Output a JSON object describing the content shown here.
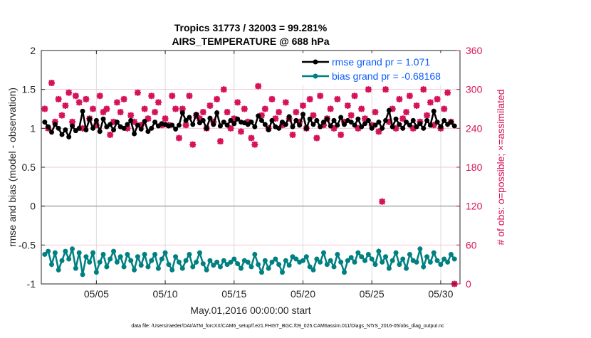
{
  "chart_data": {
    "type": "line",
    "title": [
      "Tropics 31773 / 32003 = 99.281%",
      "AIRS_TEMPERATURE @ 688 hPa"
    ],
    "xlabel": "May.01,2016 00:00:00 start",
    "ylabel": "rmse and bias (model - observation)",
    "ylabel_right": "# of obs: o=possible; ×=assimilated",
    "footer": "data file: /Users/raeder/DAI/ATM_forcXX/CAM6_setup/f.e21.FHIST_BGC.f09_025.CAM6assim.011/Diags_NTrS_2016-05/obs_diag_output.nc",
    "x_units": "days since May.01,2016 00:00:00",
    "xlim": [
      0,
      30.4
    ],
    "x_ticks": [
      4,
      9,
      14,
      19,
      24,
      29
    ],
    "x_tick_labels": [
      "05/05",
      "05/10",
      "05/15",
      "05/20",
      "05/25",
      "05/30"
    ],
    "ylim": [
      -1,
      2
    ],
    "y_ticks": [
      -1,
      -0.5,
      0,
      0.5,
      1,
      1.5,
      2
    ],
    "y_tick_labels": [
      "-1",
      "-0.5",
      "0",
      "0.5",
      "1",
      "1.5",
      "2"
    ],
    "ylim_right": [
      0,
      360
    ],
    "y_ticks_right": [
      0,
      60,
      120,
      180,
      240,
      300,
      360
    ],
    "y_tick_labels_right": [
      "0",
      "60",
      "120",
      "180",
      "240",
      "300",
      "360"
    ],
    "legend_placement": "top-right",
    "x_start": 0.25,
    "x_step": 0.25,
    "series": [
      {
        "name": "rmse grand pr = 1.071",
        "color": "#000000",
        "values": [
          1.08,
          1.02,
          0.95,
          1.05,
          1.0,
          0.92,
          0.98,
          0.89,
          1.03,
          0.97,
          1.0,
          1.22,
          0.98,
          1.12,
          1.0,
          1.1,
          0.96,
          1.12,
          1.02,
          1.05,
          0.98,
          1.08,
          1.02,
          1.0,
          1.05,
          1.1,
          0.93,
          1.04,
          0.99,
          1.09,
          0.96,
          1.0,
          1.08,
          1.03,
          1.06,
          1.05,
          1.03,
          1.04,
          0.99,
          1.04,
          1.2,
          1.1,
          1.14,
          1.05,
          1.18,
          1.07,
          1.1,
          1.0,
          1.13,
          1.05,
          1.2,
          1.03,
          1.08,
          1.04,
          1.1,
          1.06,
          1.12,
          1.08,
          1.07,
          1.05,
          1.08,
          1.02,
          1.16,
          1.1,
          1.05,
          0.98,
          1.1,
          1.02,
          1.0,
          1.08,
          1.05,
          1.15,
          1.02,
          1.1,
          1.04,
          1.18,
          1.0,
          1.12,
          1.05,
          1.1,
          1.02,
          1.08,
          1.12,
          1.03,
          1.1,
          1.04,
          1.14,
          1.05,
          1.1,
          1.08,
          1.04,
          1.12,
          1.02,
          1.06,
          1.1,
          1.0,
          1.04,
          1.08,
          1.0,
          1.1,
          1.23,
          1.02,
          1.12,
          1.05,
          1.0,
          1.08,
          1.04,
          1.1,
          1.02,
          1.06,
          1.0,
          1.1,
          1.04,
          1.22,
          1.08,
          1.02,
          1.1,
          1.05,
          1.08,
          1.03
        ]
      },
      {
        "name": "bias grand pr = -0.68168",
        "color": "#008080",
        "values": [
          -0.62,
          -0.58,
          -0.75,
          -0.6,
          -0.82,
          -0.7,
          -0.58,
          -0.68,
          -0.55,
          -0.8,
          -0.6,
          -0.88,
          -0.65,
          -0.72,
          -0.6,
          -0.85,
          -0.72,
          -0.62,
          -0.78,
          -0.68,
          -0.58,
          -0.72,
          -0.65,
          -0.78,
          -0.62,
          -0.7,
          -0.82,
          -0.65,
          -0.76,
          -0.62,
          -0.78,
          -0.7,
          -0.62,
          -0.8,
          -0.68,
          -0.6,
          -0.75,
          -0.82,
          -0.65,
          -0.72,
          -0.8,
          -0.7,
          -0.62,
          -0.78,
          -0.72,
          -0.6,
          -0.74,
          -0.82,
          -0.7,
          -0.76,
          -0.72,
          -0.78,
          -0.7,
          -0.75,
          -0.72,
          -0.68,
          -0.74,
          -0.8,
          -0.7,
          -0.72,
          -0.78,
          -0.62,
          -0.75,
          -0.85,
          -0.7,
          -0.8,
          -0.72,
          -0.68,
          -0.75,
          -0.85,
          -0.7,
          -0.76,
          -0.65,
          -0.68,
          -0.72,
          -0.7,
          -0.65,
          -0.78,
          -0.82,
          -0.68,
          -0.72,
          -0.6,
          -0.75,
          -0.7,
          -0.78,
          -0.62,
          -0.72,
          -0.85,
          -0.7,
          -0.66,
          -0.72,
          -0.6,
          -0.65,
          -0.7,
          -0.62,
          -0.68,
          -0.75,
          -0.58,
          -0.72,
          -0.65,
          -0.8,
          -0.7,
          -0.6,
          -0.75,
          -0.68,
          -0.8,
          -0.62,
          -0.7,
          -0.72,
          -0.55,
          -0.78,
          -0.65,
          -0.72,
          -0.6,
          -0.7,
          -0.75,
          -0.68,
          -0.72,
          -0.62,
          -0.68
        ]
      },
      {
        "name": "obs count (possible / assimilated)",
        "axis": "right",
        "color": "#d6135a",
        "values": [
          270,
          240,
          310,
          250,
          285,
          260,
          275,
          295,
          250,
          290,
          280,
          240,
          285,
          255,
          270,
          245,
          290,
          265,
          270,
          230,
          250,
          280,
          265,
          285,
          240,
          260,
          250,
          295,
          245,
          270,
          255,
          290,
          265,
          280,
          245,
          255,
          245,
          290,
          270,
          225,
          270,
          245,
          290,
          215,
          260,
          255,
          265,
          240,
          275,
          250,
          285,
          220,
          300,
          265,
          240,
          255,
          280,
          235,
          270,
          250,
          225,
          215,
          305,
          260,
          270,
          240,
          285,
          255,
          265,
          245,
          280,
          255,
          230,
          265,
          250,
          275,
          240,
          285,
          260,
          225,
          290,
          245,
          255,
          270,
          240,
          285,
          230,
          250,
          275,
          260,
          290,
          240,
          270,
          255,
          300,
          245,
          265,
          235,
          127,
          300,
          250,
          270,
          240,
          285,
          255,
          265,
          290,
          240,
          275,
          250,
          300,
          260,
          280,
          245,
          285,
          240,
          270,
          295,
          250,
          0
        ]
      }
    ]
  }
}
